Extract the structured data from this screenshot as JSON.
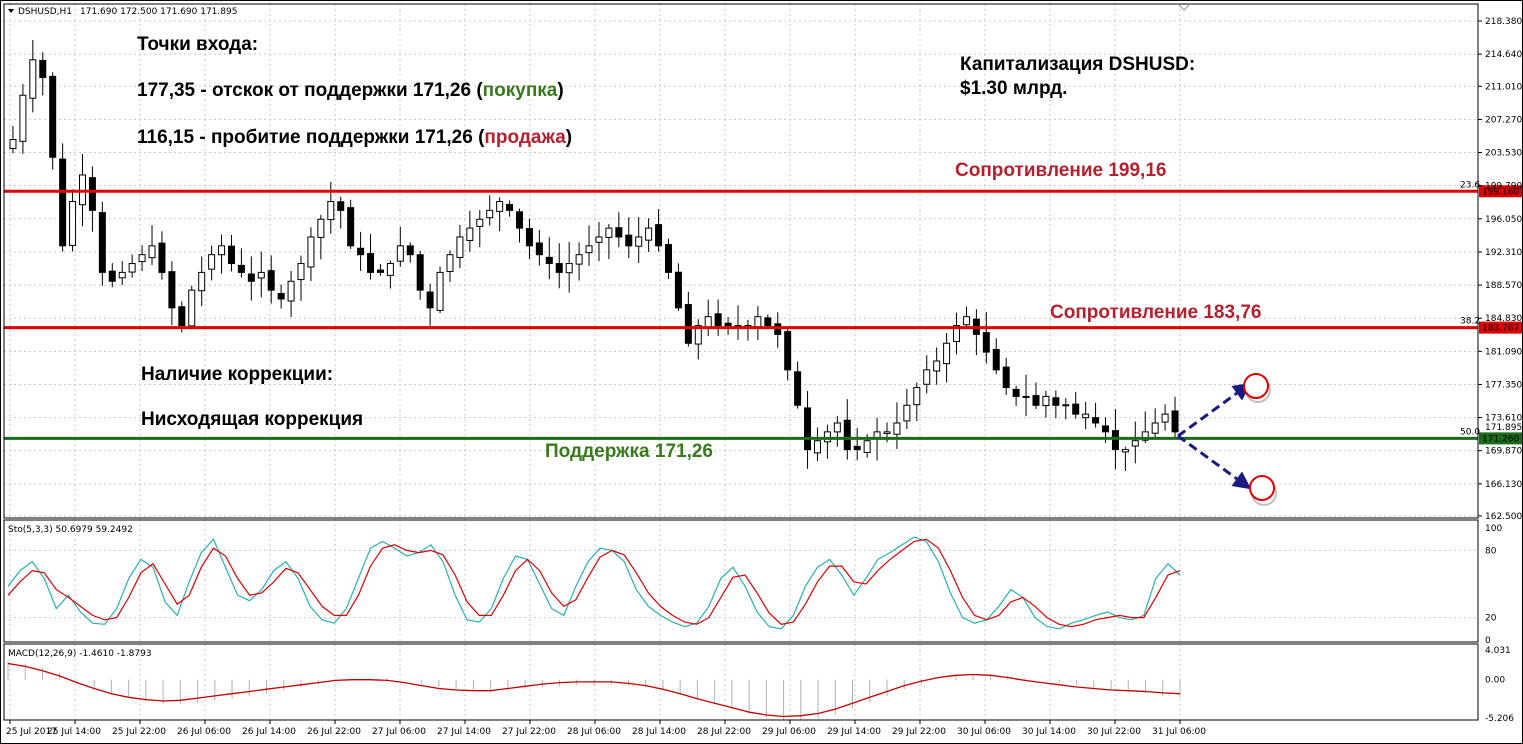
{
  "header": {
    "symbol": "DSHUSD,H1",
    "ohlc": "171.690 172.500 171.690 171.895"
  },
  "annotations": {
    "entry_title": "Точки входа:",
    "entry1_text": "177,35 - отскок от поддержки 171,26 (",
    "entry1_word": "покупка",
    "entry1_close": ")",
    "entry2_text": "116,15 - пробитие поддержки 171,26 (",
    "entry2_word": "продажа",
    "entry2_close": ")",
    "cap_title": "Капитализация DSHUSD:",
    "cap_value": "$1.30 млрд.",
    "resistance1": "Сопротивление 199,16",
    "resistance2": "Сопротивление 183,76",
    "support": "Поддержка 171,26",
    "correction_title": "Наличие коррекции:",
    "correction_value": "Нисходящая коррекция"
  },
  "colors": {
    "resistance": "#e00000",
    "support": "#1a6b1a",
    "label_red": "#b5202e",
    "label_green": "#3a7a1e",
    "arrow": "#1a1a80",
    "stoch_main": "#2ab0b0",
    "stoch_signal": "#e00000",
    "macd_signal": "#c00000",
    "macd_hist": "#b0b0b0"
  },
  "chart_data": [
    {
      "type": "candlestick",
      "title": "DSHUSD,H1 171.690 172.500 171.690 171.895",
      "ylim": [
        162.5,
        220.0
      ],
      "y_ticks": [
        "218.380",
        "214.640",
        "211.010",
        "207.270",
        "203.530",
        "199.790",
        "196.050",
        "192.310",
        "188.570",
        "184.830",
        "181.090",
        "177.350",
        "173.610",
        "169.870",
        "166.130",
        "162.500"
      ],
      "x_ticks": [
        "25 Jul 2017",
        "25 Jul 14:00",
        "25 Jul 22:00",
        "26 Jul 06:00",
        "26 Jul 14:00",
        "26 Jul 22:00",
        "27 Jul 06:00",
        "27 Jul 14:00",
        "27 Jul 22:00",
        "28 Jul 06:00",
        "28 Jul 14:00",
        "28 Jul 22:00",
        "29 Jul 06:00",
        "29 Jul 14:00",
        "29 Jul 22:00",
        "30 Jul 06:00",
        "30 Jul 14:00",
        "30 Jul 22:00",
        "31 Jul 06:00"
      ],
      "levels": [
        {
          "value": 199.16,
          "label": "199.160",
          "fib": "23.6"
        },
        {
          "value": 183.767,
          "label": "183.767",
          "fib": "38.2"
        },
        {
          "value": 171.26,
          "label": "171.260",
          "fib": "50.0"
        }
      ],
      "current_price": "171.895",
      "close_path": [
        205,
        210,
        214,
        212,
        203,
        193,
        198,
        201,
        197,
        190,
        189,
        190,
        191,
        192,
        193,
        190,
        186,
        184,
        188,
        190,
        192,
        193,
        191,
        190,
        189,
        190,
        188,
        187,
        189,
        191,
        194,
        196,
        198,
        197,
        193,
        192,
        190,
        190,
        191,
        193,
        192,
        188,
        186,
        190,
        192,
        194,
        195,
        196,
        197,
        198,
        197,
        195,
        193,
        192,
        191,
        190,
        191,
        192,
        193,
        194,
        195,
        194,
        193,
        194,
        195,
        193,
        190,
        186,
        182,
        184,
        185,
        184,
        184,
        184,
        184,
        185,
        184,
        183,
        179,
        175,
        170,
        171,
        172,
        173,
        170,
        170,
        171,
        172,
        172,
        173,
        175,
        177,
        179,
        180,
        182,
        184,
        185,
        183,
        181,
        179,
        177,
        176,
        176,
        175,
        176,
        175,
        175,
        174,
        174,
        173,
        172,
        170,
        170,
        171,
        172,
        173,
        174,
        172
      ]
    },
    {
      "type": "line",
      "title": "Sto(5,3,3) 50.6979 59.2492",
      "ylim": [
        0,
        100
      ],
      "y_ticks": [
        "100",
        "80",
        "20",
        "0"
      ],
      "series": [
        {
          "name": "main",
          "values": [
            48,
            62,
            70,
            55,
            28,
            40,
            25,
            15,
            14,
            28,
            55,
            72,
            65,
            34,
            22,
            52,
            78,
            90,
            65,
            40,
            35,
            45,
            62,
            70,
            55,
            30,
            18,
            15,
            28,
            55,
            82,
            88,
            82,
            75,
            78,
            85,
            70,
            40,
            18,
            16,
            28,
            55,
            75,
            72,
            50,
            28,
            22,
            48,
            70,
            82,
            80,
            70,
            45,
            30,
            22,
            16,
            12,
            15,
            30,
            55,
            65,
            48,
            25,
            12,
            10,
            22,
            48,
            65,
            72,
            58,
            40,
            55,
            72,
            78,
            85,
            92,
            88,
            70,
            42,
            20,
            15,
            18,
            30,
            45,
            38,
            20,
            12,
            10,
            15,
            18,
            22,
            25,
            20,
            18,
            22,
            55,
            68,
            58
          ]
        },
        {
          "name": "signal",
          "values": [
            40,
            52,
            62,
            60,
            45,
            38,
            30,
            22,
            18,
            20,
            38,
            60,
            68,
            50,
            32,
            40,
            65,
            82,
            75,
            55,
            40,
            42,
            52,
            64,
            60,
            45,
            30,
            22,
            22,
            40,
            66,
            82,
            85,
            80,
            78,
            80,
            76,
            58,
            34,
            22,
            22,
            40,
            62,
            72,
            62,
            42,
            30,
            36,
            56,
            74,
            80,
            76,
            60,
            42,
            30,
            22,
            16,
            14,
            20,
            38,
            56,
            58,
            42,
            24,
            14,
            16,
            32,
            52,
            66,
            66,
            52,
            50,
            62,
            72,
            80,
            88,
            90,
            82,
            62,
            38,
            22,
            18,
            22,
            34,
            38,
            30,
            20,
            14,
            12,
            14,
            18,
            20,
            22,
            20,
            20,
            38,
            58,
            62
          ]
        }
      ]
    },
    {
      "type": "line",
      "title": "MACD(12,26,9) -1.4610 -1.8793",
      "ylim": [
        -5.206,
        4.031
      ],
      "y_ticks": [
        "4.031",
        "0.00",
        "-5.206"
      ],
      "series": [
        {
          "name": "signal",
          "values": [
            2.2,
            1.8,
            1.2,
            0.5,
            -0.4,
            -1.2,
            -1.9,
            -2.4,
            -2.7,
            -2.9,
            -2.8,
            -2.5,
            -2.2,
            -1.9,
            -1.6,
            -1.3,
            -1.0,
            -0.7,
            -0.4,
            -0.1,
            0.0,
            0.0,
            -0.1,
            -0.4,
            -0.8,
            -1.2,
            -1.4,
            -1.5,
            -1.5,
            -1.2,
            -0.9,
            -0.6,
            -0.4,
            -0.3,
            -0.3,
            -0.3,
            -0.5,
            -0.8,
            -1.3,
            -1.9,
            -2.6,
            -3.2,
            -3.8,
            -4.4,
            -4.8,
            -5.0,
            -4.9,
            -4.6,
            -4.0,
            -3.2,
            -2.4,
            -1.6,
            -0.8,
            -0.2,
            0.3,
            0.6,
            0.7,
            0.6,
            0.3,
            -0.1,
            -0.4,
            -0.7,
            -1.0,
            -1.2,
            -1.4,
            -1.5,
            -1.6,
            -1.8,
            -1.9
          ]
        }
      ]
    }
  ]
}
